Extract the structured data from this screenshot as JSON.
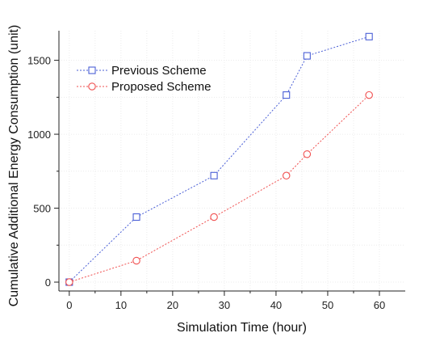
{
  "chart_data": {
    "type": "line",
    "title": "",
    "xlabel": "Simulation Time (hour)",
    "ylabel": "Cumulative Additional Energy Consumption (unit)",
    "xlim": [
      -2,
      65
    ],
    "ylim": [
      -60,
      1700
    ],
    "xticks": [
      0,
      10,
      20,
      30,
      40,
      50,
      60
    ],
    "yticks": [
      0,
      500,
      1000,
      1500
    ],
    "x_minor_ticks": [
      5,
      15,
      25,
      35,
      45,
      55
    ],
    "y_minor_ticks": [
      250,
      750,
      1250
    ],
    "grid": true,
    "legend_position": "top-left",
    "series": [
      {
        "name": "Previous Scheme",
        "color": "#4a5fd6",
        "marker": "square",
        "line_style": "dotted",
        "x": [
          0,
          13,
          28,
          42,
          46,
          58
        ],
        "y": [
          0,
          440,
          720,
          1265,
          1530,
          1660
        ]
      },
      {
        "name": "Proposed Scheme",
        "color": "#f05050",
        "marker": "circle",
        "line_style": "dotted",
        "x": [
          0,
          13,
          28,
          42,
          46,
          58
        ],
        "y": [
          0,
          145,
          440,
          720,
          865,
          1265
        ]
      }
    ]
  }
}
